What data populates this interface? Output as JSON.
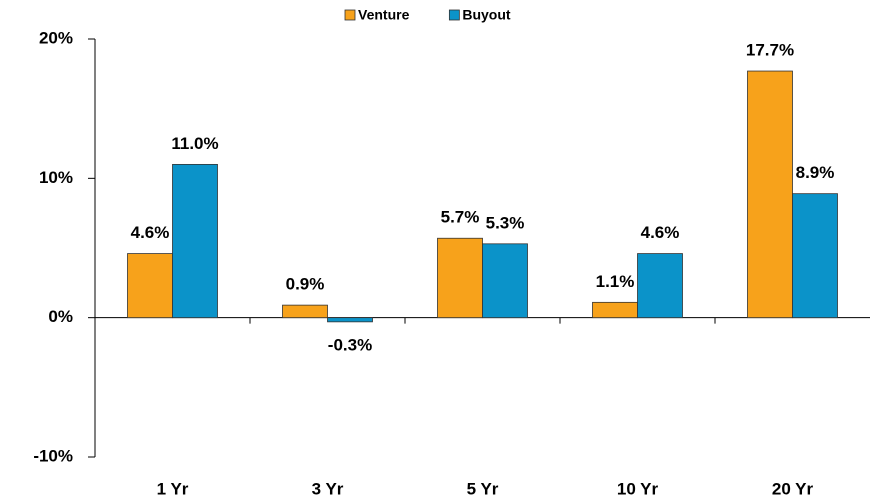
{
  "chart_data": {
    "type": "bar",
    "categories": [
      "1 Yr",
      "3 Yr",
      "5 Yr",
      "10 Yr",
      "20 Yr"
    ],
    "series": [
      {
        "name": "Venture",
        "color": "#f7a21b",
        "values": [
          4.6,
          0.9,
          5.7,
          1.1,
          17.7
        ],
        "value_labels": [
          "4.6%",
          "0.9%",
          "5.7%",
          "1.1%",
          "17.7%"
        ]
      },
      {
        "name": "Buyout",
        "color": "#0b93c9",
        "values": [
          11.0,
          -0.3,
          5.3,
          4.6,
          8.9
        ],
        "value_labels": [
          "11.0%",
          "-0.3%",
          "5.3%",
          "4.6%",
          "8.9%"
        ]
      }
    ],
    "ylim": [
      -10,
      20
    ],
    "yticks": [
      {
        "value": -10,
        "label": "-10%"
      },
      {
        "value": 0,
        "label": "0%"
      },
      {
        "value": 10,
        "label": "10%"
      },
      {
        "value": 20,
        "label": "20%"
      }
    ],
    "legend": "top"
  }
}
